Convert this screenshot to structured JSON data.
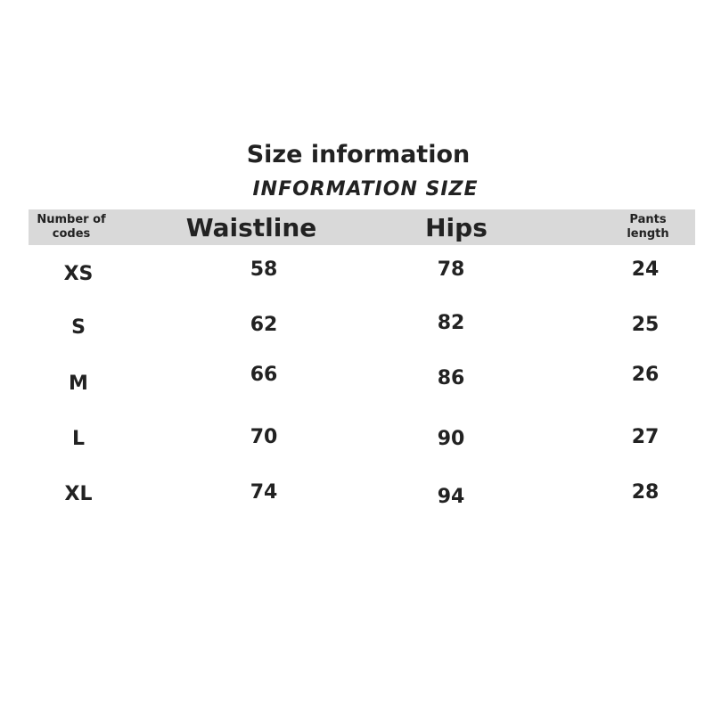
{
  "title": "Size information",
  "subtitle": "INFORMATION SIZE",
  "headers": [
    "Number of codes",
    "Waistline",
    "Hips",
    "Pants length"
  ],
  "rows": [
    [
      "XS",
      "58",
      "78",
      "24"
    ],
    [
      "S",
      "62",
      "82",
      "25"
    ],
    [
      "M",
      "66",
      "86",
      "26"
    ],
    [
      "L",
      "70",
      "90",
      "27"
    ],
    [
      "XL",
      "74",
      "94",
      "28"
    ]
  ]
}
